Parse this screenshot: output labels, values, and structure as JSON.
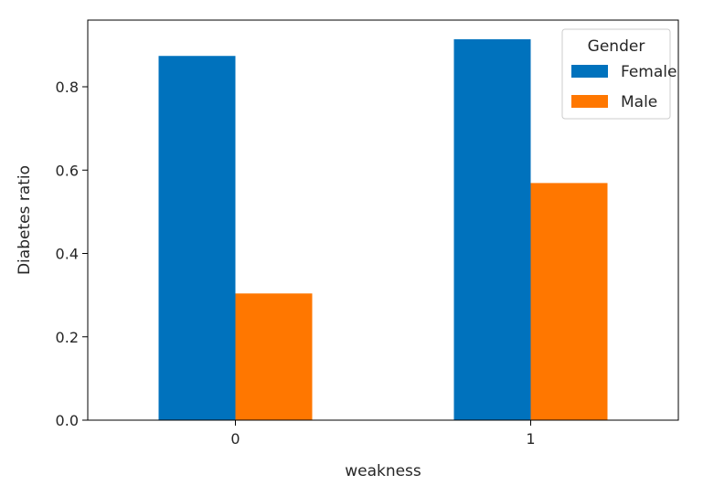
{
  "chart_data": {
    "type": "bar",
    "categories": [
      "0",
      "1"
    ],
    "series": [
      {
        "name": "Female",
        "values": [
          0.874,
          0.914
        ],
        "color": "#0072bd"
      },
      {
        "name": "Male",
        "values": [
          0.304,
          0.569
        ],
        "color": "#ff7700"
      }
    ],
    "title": "",
    "xlabel": "weakness",
    "ylabel": "Diabetes ratio",
    "ylim": [
      0,
      0.96
    ],
    "yticks": [
      0.0,
      0.2,
      0.4,
      0.6,
      0.8
    ],
    "ytick_labels": [
      "0.0",
      "0.2",
      "0.4",
      "0.6",
      "0.8"
    ],
    "grid": false,
    "legend": {
      "title": "Gender",
      "placement": "top-right"
    }
  }
}
